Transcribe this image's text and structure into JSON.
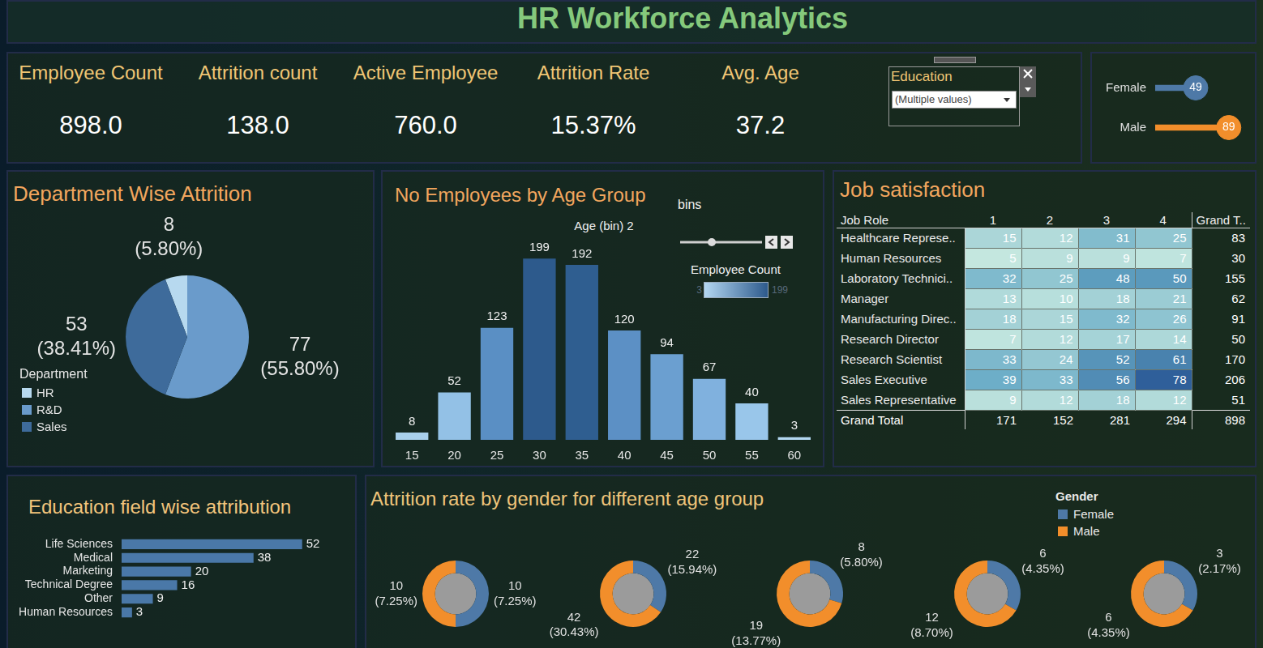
{
  "title": "HR Workforce Analytics",
  "kpis": [
    {
      "label": "Employee Count",
      "value": "898.0"
    },
    {
      "label": "Attrition count",
      "value": "138.0"
    },
    {
      "label": "Active Employee",
      "value": "760.0"
    },
    {
      "label": "Attrition Rate",
      "value": "15.37%"
    },
    {
      "label": "Avg. Age",
      "value": "37.2"
    }
  ],
  "filter": {
    "label": "Education",
    "value": "(Multiple values)"
  },
  "job_satisfaction": {
    "title": "Job satisfaction",
    "header": [
      "Job Role",
      "1",
      "2",
      "3",
      "4",
      "Grand T.."
    ],
    "rows": [
      [
        "Healthcare Represe..",
        15,
        12,
        31,
        25,
        83
      ],
      [
        "Human Resources",
        5,
        9,
        9,
        7,
        30
      ],
      [
        "Laboratory Technici..",
        32,
        25,
        48,
        50,
        155
      ],
      [
        "Manager",
        13,
        10,
        18,
        21,
        62
      ],
      [
        "Manufacturing Direc..",
        18,
        15,
        32,
        26,
        91
      ],
      [
        "Research Director",
        7,
        12,
        17,
        14,
        50
      ],
      [
        "Research Scientist",
        33,
        24,
        52,
        61,
        170
      ],
      [
        "Sales Executive",
        39,
        33,
        56,
        78,
        206
      ],
      [
        "Sales Representative",
        9,
        12,
        18,
        12,
        51
      ]
    ],
    "total_row": [
      "Grand Total",
      171,
      152,
      281,
      294,
      898
    ]
  },
  "chart_data": [
    {
      "type": "bar",
      "orientation": "horizontal",
      "marker": "circle",
      "categories": [
        "Female",
        "Male"
      ],
      "values": [
        49,
        89
      ],
      "colors": [
        "#4e79a7",
        "#f28e2b"
      ],
      "data_labels": true,
      "tick_labels": "y"
    },
    {
      "type": "pie",
      "title": "Department Wise Attrition",
      "legend_title": "Department",
      "legend": "bottom left",
      "categories": [
        "HR",
        "R&D",
        "Sales"
      ],
      "values": [
        8,
        77,
        53
      ],
      "value_labels": [
        "8\n(5.80%)",
        "77\n(55.80%)",
        "53\n(38.41%)"
      ],
      "colors": [
        "#b7d9ef",
        "#6a9bcb",
        "#3e6b9b"
      ]
    },
    {
      "type": "bar",
      "title": "No Employees by Age Group",
      "x_label": "Age (bin) 2",
      "control_label": "bins",
      "categories": [
        15,
        20,
        25,
        30,
        35,
        40,
        45,
        50,
        55,
        60
      ],
      "values": [
        8,
        52,
        123,
        199,
        192,
        120,
        94,
        67,
        40,
        3
      ],
      "colors": [
        "#a9d0ec",
        "#93c1e6",
        "#5a8fc4",
        "#2d5a8c",
        "#2f5e90",
        "#5c90c5",
        "#6b9fd0",
        "#80b1de",
        "#99c6ea",
        "#b3d7f1"
      ],
      "data_labels": true,
      "tick_labels": "x",
      "color_scale": {
        "title": "Employee Count",
        "range": [
          3,
          199
        ]
      }
    },
    {
      "type": "bar",
      "orientation": "horizontal",
      "title": "Education field wise attribution",
      "categories": [
        "Life Sciences",
        "Medical",
        "Marketing",
        "Technical Degree",
        "Other",
        "Human Resources"
      ],
      "values": [
        52,
        38,
        20,
        16,
        9,
        3
      ],
      "color": "#4a78a8",
      "data_labels": true,
      "tick_labels": "y"
    },
    {
      "type": "doughnut",
      "title": "Attrition rate by gender for different age group",
      "legend_title": "Gender",
      "legend": "top right",
      "categories": [
        null,
        null,
        null,
        null,
        null
      ],
      "series": [
        {
          "name": "Female",
          "color": "#4e79a7",
          "values": [
            10,
            22,
            8,
            6,
            3
          ],
          "value_labels": [
            "10\n(7.25%)",
            "22\n(15.94%)",
            "8\n(5.80%)",
            "6\n(4.35%)",
            "3\n(2.17%)"
          ]
        },
        {
          "name": "Male",
          "color": "#f28e2b",
          "values": [
            10,
            42,
            19,
            12,
            6
          ],
          "value_labels": [
            "10\n(7.25%)",
            "42\n(30.43%)",
            "19\n(13.77%)",
            "12\n(8.70%)",
            "6\n(4.35%)"
          ]
        }
      ]
    }
  ]
}
